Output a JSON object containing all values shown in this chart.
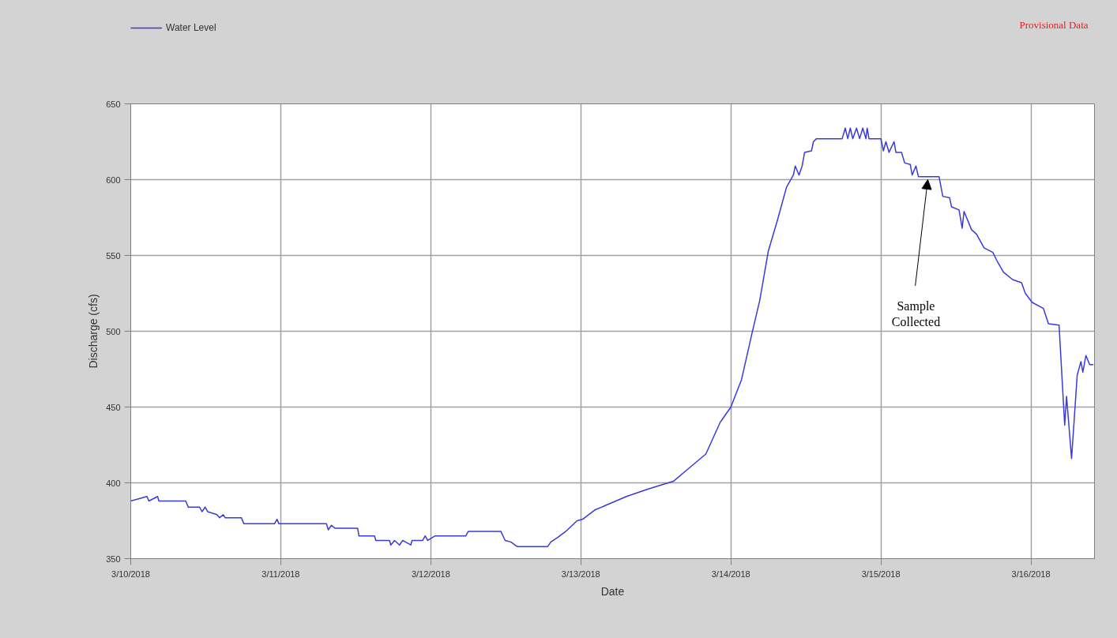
{
  "chart_data": {
    "type": "line",
    "xlabel": "Date",
    "ylabel": "Discharge (cfs)",
    "xlim": [
      "2018-03-10T00:00",
      "2018-03-16T10:10"
    ],
    "xticks": [
      {
        "value": "2018-03-10",
        "label": "3/10/2018"
      },
      {
        "value": "2018-03-11",
        "label": "3/11/2018"
      },
      {
        "value": "2018-03-12",
        "label": "3/12/2018"
      },
      {
        "value": "2018-03-13",
        "label": "3/13/2018"
      },
      {
        "value": "2018-03-14",
        "label": "3/14/2018"
      },
      {
        "value": "2018-03-15",
        "label": "3/15/2018"
      },
      {
        "value": "2018-03-16",
        "label": "3/16/2018"
      }
    ],
    "ylim": [
      350,
      650
    ],
    "yticks": [
      350,
      400,
      450,
      500,
      550,
      600,
      650
    ],
    "grid": true,
    "legend": "top left",
    "annotations": [
      "Provisional Data",
      {
        "text": "Sample Collected",
        "x": "2018-03-15T07:30",
        "y": 602
      }
    ],
    "series": [
      {
        "name": "Water Level",
        "color": "#3a3adb",
        "x": [
          "2018-03-10T00:00",
          "2018-03-10T02:36",
          "2018-03-10T02:54",
          "2018-03-10T04:18",
          "2018-03-10T04:30",
          "2018-03-10T08:48",
          "2018-03-10T09:12",
          "2018-03-10T11:00",
          "2018-03-10T11:24",
          "2018-03-10T11:54",
          "2018-03-10T12:18",
          "2018-03-10T13:48",
          "2018-03-10T14:12",
          "2018-03-10T14:48",
          "2018-03-10T15:06",
          "2018-03-10T17:42",
          "2018-03-10T18:06",
          "2018-03-10T23:00",
          "2018-03-10T23:24",
          "2018-03-10T23:42",
          "2018-03-11T07:18",
          "2018-03-11T07:36",
          "2018-03-11T08:06",
          "2018-03-11T08:42",
          "2018-03-11T12:18",
          "2018-03-11T12:30",
          "2018-03-11T15:00",
          "2018-03-11T15:12",
          "2018-03-11T17:24",
          "2018-03-11T17:36",
          "2018-03-11T18:12",
          "2018-03-11T19:00",
          "2018-03-11T19:30",
          "2018-03-11T20:48",
          "2018-03-11T21:00",
          "2018-03-11T22:42",
          "2018-03-11T23:06",
          "2018-03-11T23:30",
          "2018-03-12T00:42",
          "2018-03-12T05:36",
          "2018-03-12T06:00",
          "2018-03-12T11:12",
          "2018-03-12T11:54",
          "2018-03-12T12:48",
          "2018-03-12T13:48",
          "2018-03-12T18:42",
          "2018-03-12T19:12",
          "2018-03-12T20:18",
          "2018-03-12T21:36",
          "2018-03-12T23:24",
          "2018-03-13T00:18",
          "2018-03-13T02:12",
          "2018-03-13T03:54",
          "2018-03-13T07:18",
          "2018-03-13T10:48",
          "2018-03-13T14:48",
          "2018-03-13T17:06",
          "2018-03-13T20:00",
          "2018-03-13T22:18",
          "2018-03-14T00:00",
          "2018-03-14T01:42",
          "2018-03-14T03:24",
          "2018-03-14T04:36",
          "2018-03-14T06:00",
          "2018-03-14T07:30",
          "2018-03-14T08:54",
          "2018-03-14T10:00",
          "2018-03-14T10:18",
          "2018-03-14T10:54",
          "2018-03-14T11:24",
          "2018-03-14T11:48",
          "2018-03-14T12:54",
          "2018-03-14T13:12",
          "2018-03-14T13:42",
          "2018-03-14T17:48",
          "2018-03-14T18:18",
          "2018-03-14T18:42",
          "2018-03-14T19:06",
          "2018-03-14T19:30",
          "2018-03-14T20:06",
          "2018-03-14T20:36",
          "2018-03-14T21:06",
          "2018-03-14T21:36",
          "2018-03-14T21:48",
          "2018-03-14T22:06",
          "2018-03-15T00:00",
          "2018-03-15T00:24",
          "2018-03-15T00:48",
          "2018-03-15T01:18",
          "2018-03-15T02:06",
          "2018-03-15T02:24",
          "2018-03-15T03:18",
          "2018-03-15T03:48",
          "2018-03-15T04:42",
          "2018-03-15T05:00",
          "2018-03-15T05:36",
          "2018-03-15T06:00",
          "2018-03-15T09:18",
          "2018-03-15T09:54",
          "2018-03-15T11:00",
          "2018-03-15T11:18",
          "2018-03-15T12:30",
          "2018-03-15T13:00",
          "2018-03-15T13:18",
          "2018-03-15T14:30",
          "2018-03-15T15:18",
          "2018-03-15T16:30",
          "2018-03-15T17:54",
          "2018-03-15T18:30",
          "2018-03-15T19:36",
          "2018-03-15T21:06",
          "2018-03-15T22:30",
          "2018-03-15T23:06",
          "2018-03-16T00:12",
          "2018-03-16T02:00",
          "2018-03-16T02:48",
          "2018-03-16T04:30",
          "2018-03-16T05:24",
          "2018-03-16T05:42",
          "2018-03-16T06:30",
          "2018-03-16T07:24",
          "2018-03-16T08:00",
          "2018-03-16T08:18",
          "2018-03-16T08:48",
          "2018-03-16T09:24",
          "2018-03-16T10:00"
        ],
        "values": [
          388,
          391,
          388,
          391,
          388,
          388,
          384,
          384,
          381,
          384,
          381,
          379,
          377,
          379,
          377,
          377,
          373,
          373,
          376,
          373,
          373,
          369,
          372,
          370,
          370,
          365,
          365,
          362,
          362,
          359,
          362,
          359,
          362,
          359,
          362,
          362,
          365,
          362,
          365,
          365,
          368,
          368,
          362,
          361,
          358,
          358,
          361,
          364,
          368,
          375,
          376,
          382,
          385,
          391,
          396,
          401,
          409,
          419,
          440,
          450,
          468,
          499,
          520,
          553,
          574,
          595,
          603,
          609,
          603,
          609,
          618,
          619,
          625,
          627,
          627,
          634,
          627,
          634,
          627,
          634,
          627,
          634,
          627,
          634,
          627,
          627,
          619,
          625,
          618,
          625,
          618,
          618,
          611,
          610,
          603,
          609,
          602,
          602,
          589,
          588,
          582,
          580,
          568,
          579,
          567,
          564,
          555,
          552,
          547,
          539,
          534,
          532,
          525,
          519,
          515,
          505,
          504,
          438,
          457,
          416,
          471,
          480,
          473,
          484,
          478,
          478
        ]
      }
    ]
  }
}
